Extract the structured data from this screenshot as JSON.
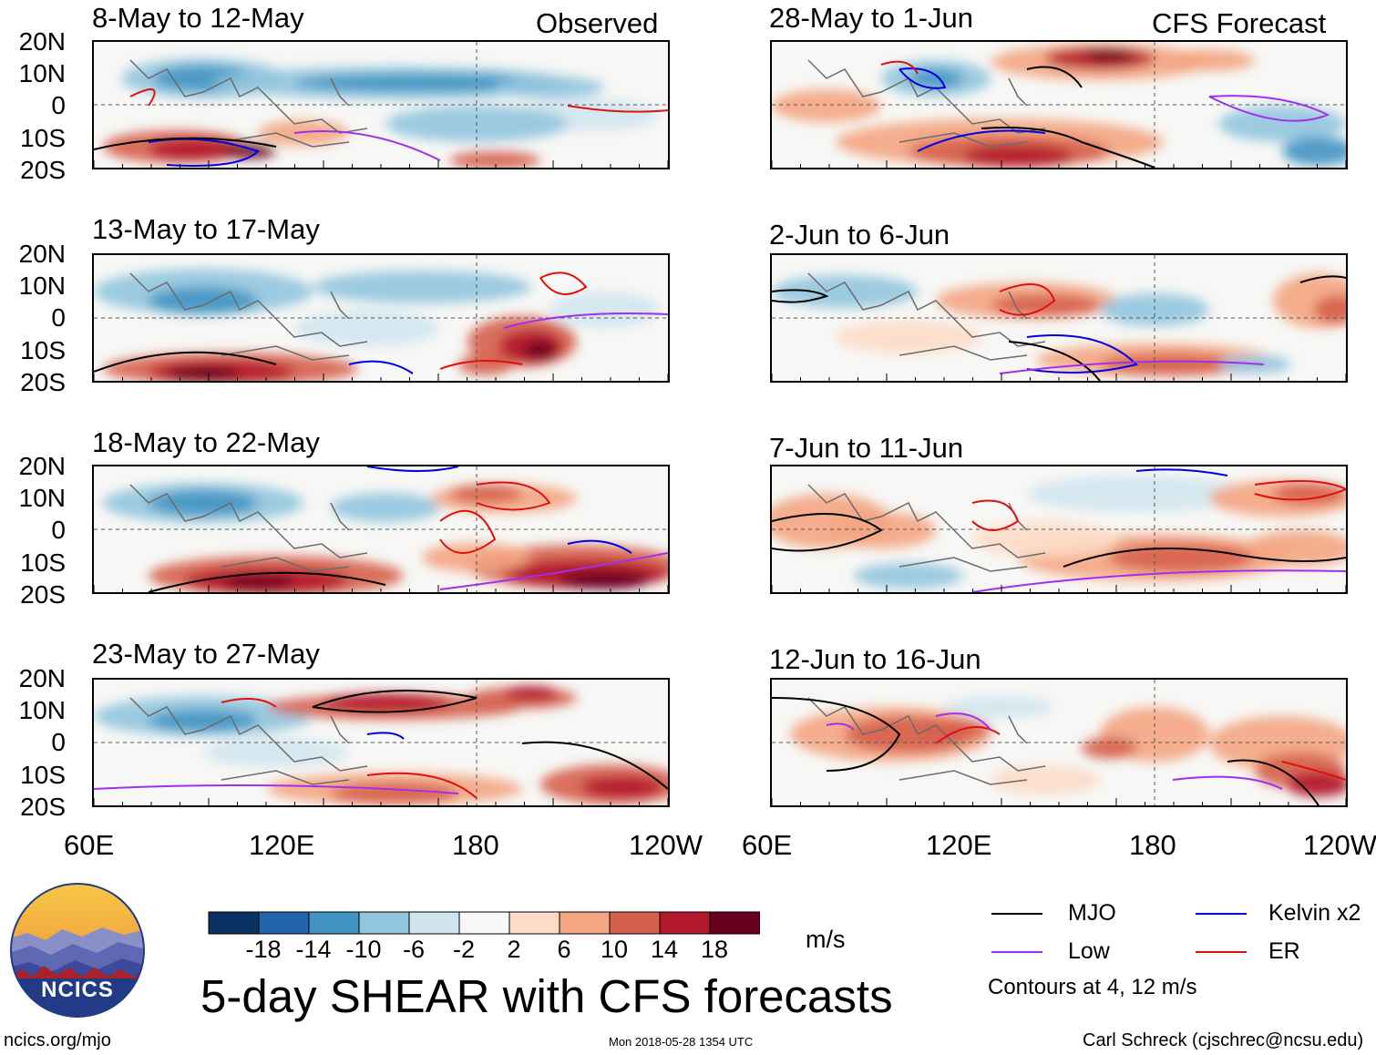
{
  "panels": [
    {
      "title": "8-May to 12-May",
      "tag": "Observed",
      "lat_labels": [
        "20N",
        "10N",
        "0",
        "10S",
        "20S"
      ]
    },
    {
      "title": "13-May to 17-May",
      "tag": "",
      "lat_labels": [
        "20N",
        "10N",
        "0",
        "10S",
        "20S"
      ]
    },
    {
      "title": "18-May to 22-May",
      "tag": "",
      "lat_labels": [
        "20N",
        "10N",
        "0",
        "10S",
        "20S"
      ]
    },
    {
      "title": "23-May to 27-May",
      "tag": "",
      "lat_labels": [
        "20N",
        "10N",
        "0",
        "10S",
        "20S"
      ]
    },
    {
      "title": "28-May to 1-Jun",
      "tag": "CFS Forecast"
    },
    {
      "title": "2-Jun to 6-Jun",
      "tag": ""
    },
    {
      "title": "7-Jun to 11-Jun",
      "tag": ""
    },
    {
      "title": "12-Jun to 16-Jun",
      "tag": ""
    }
  ],
  "lon_labels": [
    "60E",
    "120E",
    "180",
    "120W"
  ],
  "colorbar": {
    "colors": [
      "#0b3163",
      "#2166ac",
      "#4393c3",
      "#92c5de",
      "#d1e5f0",
      "#f7f7f7",
      "#fddbc7",
      "#f4a582",
      "#d6604d",
      "#b2182b",
      "#67001f"
    ],
    "labels": [
      "-18",
      "-14",
      "-10",
      "-6",
      "-2",
      "2",
      "6",
      "10",
      "14",
      "18"
    ],
    "units": "m/s"
  },
  "legend": {
    "items": [
      {
        "label": "MJO",
        "color": "#000000"
      },
      {
        "label": "Kelvin x2",
        "color": "#0000e0"
      },
      {
        "label": "Low",
        "color": "#a030f0"
      },
      {
        "label": "ER",
        "color": "#e01010"
      }
    ],
    "contours_note": "Contours at 4, 12 m/s"
  },
  "title": "5-day SHEAR with CFS forecasts",
  "logo_text": "NCICS",
  "site": "ncics.org/mjo",
  "timestamp": "Mon 2018-05-28 1354 UTC",
  "author": "Carl Schreck (cjschrec@ncsu.edu)"
}
